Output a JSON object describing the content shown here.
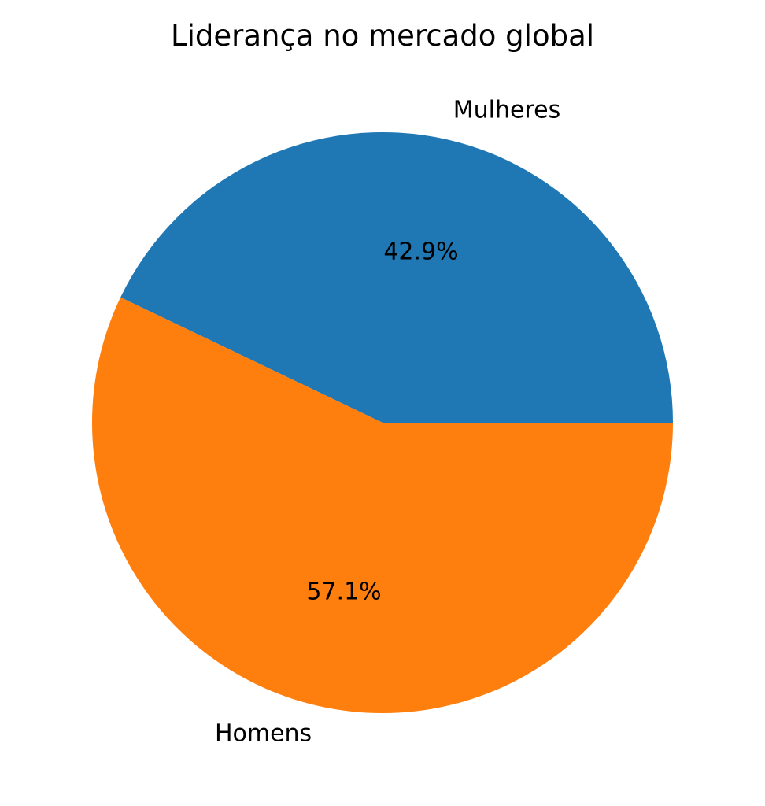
{
  "chart_data": {
    "type": "pie",
    "title": "Liderança no mercado global",
    "labels": [
      "Mulheres",
      "Homens"
    ],
    "values": [
      42.9,
      57.1
    ],
    "percent_labels": [
      "42.9%",
      "57.1%"
    ],
    "colors": [
      "#1f77b4",
      "#ff7f0e"
    ],
    "start_angle_deg": 0,
    "direction": "counterclockwise"
  }
}
